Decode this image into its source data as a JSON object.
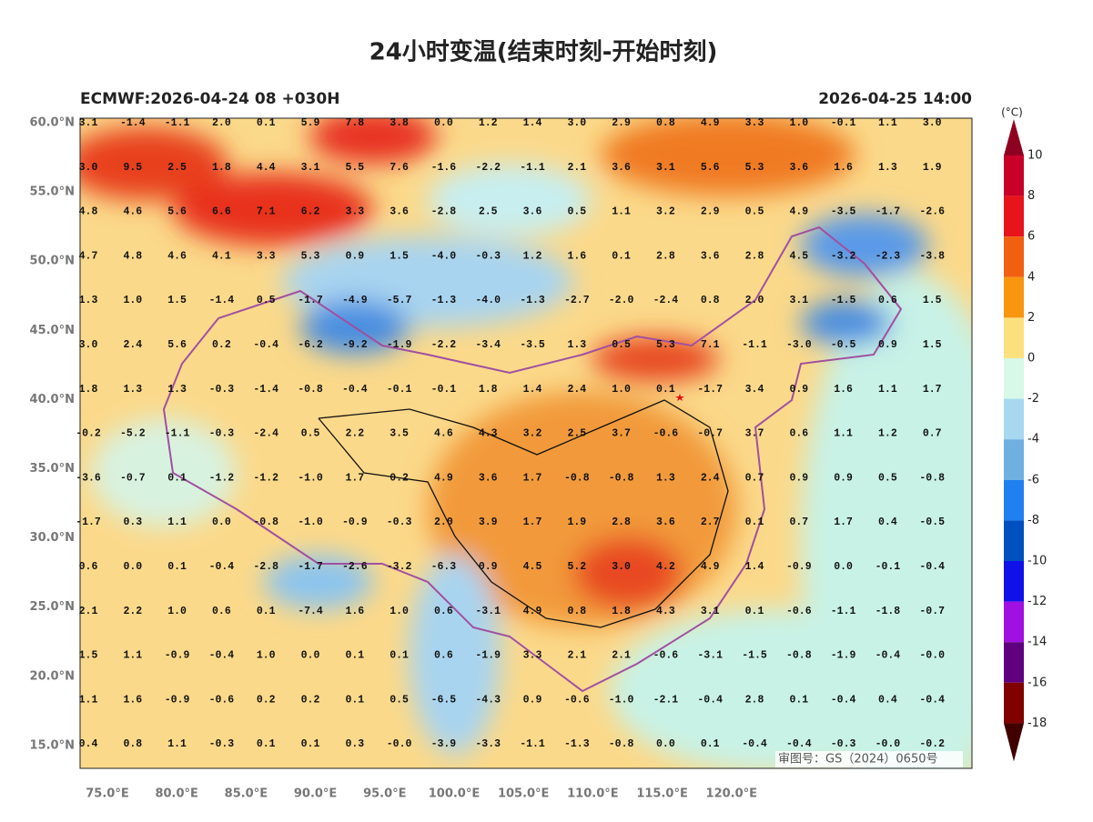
{
  "title": "24小时变温(结束时刻-开始时刻)",
  "header": {
    "left": "ECMWF:2026-04-24 08 +030H",
    "right": "2026-04-25 14:00"
  },
  "map": {
    "lat_labels": [
      "60.0°N",
      "55.0°N",
      "50.0°N",
      "45.0°N",
      "40.0°N",
      "35.0°N",
      "30.0°N",
      "25.0°N",
      "20.0°N",
      "15.0°N"
    ],
    "lon_labels": [
      "75.0°E",
      "80.0°E",
      "85.0°E",
      "90.0°E",
      "95.0°E",
      "100.0°E",
      "105.0°E",
      "110.0°E",
      "115.0°E",
      "120.0°E"
    ],
    "approval": "审图号：GS（2024）0650号",
    "station_rows": [
      [
        "3.1",
        "-1.4",
        "-1.1",
        "2.0",
        "0.1",
        "5.9",
        "7.8",
        "3.8",
        "0.0",
        "1.2",
        "1.4",
        "3.0",
        "2.9",
        "0.8",
        "4.9",
        "3.3",
        "1.0",
        "-0.1",
        "1.1",
        "3.0"
      ],
      [
        "3.0",
        "9.5",
        "2.5",
        "1.8",
        "4.4",
        "3.1",
        "5.5",
        "7.6",
        "-1.6",
        "-2.2",
        "-1.1",
        "2.1",
        "3.6",
        "3.1",
        "5.6",
        "5.3",
        "3.6",
        "1.6",
        "1.3",
        "1.9"
      ],
      [
        "4.8",
        "4.6",
        "5.6",
        "6.6",
        "7.1",
        "6.2",
        "3.3",
        "3.6",
        "-2.8",
        "2.5",
        "3.6",
        "0.5",
        "1.1",
        "3.2",
        "2.9",
        "0.5",
        "4.9",
        "-3.5",
        "-1.7",
        "-2.6"
      ],
      [
        "4.7",
        "4.8",
        "4.6",
        "4.1",
        "3.3",
        "5.3",
        "0.9",
        "1.5",
        "-4.0",
        "-0.3",
        "1.2",
        "1.6",
        "0.1",
        "2.8",
        "3.6",
        "2.8",
        "4.5",
        "-3.2",
        "-2.3",
        "-3.8"
      ],
      [
        "1.3",
        "1.0",
        "1.5",
        "-1.4",
        "0.5",
        "-1.7",
        "-4.9",
        "-5.7",
        "-1.3",
        "-4.0",
        "-1.3",
        "-2.7",
        "-2.0",
        "-2.4",
        "0.8",
        "2.0",
        "3.1",
        "-1.5",
        "0.6",
        "1.5"
      ],
      [
        "3.0",
        "2.4",
        "5.6",
        "0.2",
        "-0.4",
        "-6.2",
        "-9.2",
        "-1.9",
        "-2.2",
        "-3.4",
        "-3.5",
        "1.3",
        "0.5",
        "5.3",
        "7.1",
        "-1.1",
        "-3.0",
        "-0.5",
        "0.9",
        "1.5"
      ],
      [
        "1.8",
        "1.3",
        "1.3",
        "-0.3",
        "-1.4",
        "-0.8",
        "-0.4",
        "-0.1",
        "-0.1",
        "1.8",
        "1.4",
        "2.4",
        "1.0",
        "0.1",
        "-1.7",
        "3.4",
        "0.9",
        "1.6",
        "1.1",
        "1.7"
      ],
      [
        "-0.2",
        "-5.2",
        "-1.1",
        "-0.3",
        "-2.4",
        "0.5",
        "2.2",
        "3.5",
        "4.6",
        "4.3",
        "3.2",
        "2.5",
        "3.7",
        "-0.6",
        "-0.7",
        "3.7",
        "0.6",
        "1.1",
        "1.2",
        "0.7"
      ],
      [
        "-3.6",
        "-0.7",
        "0.1",
        "-1.2",
        "-1.2",
        "-1.0",
        "1.7",
        "0.2",
        "4.9",
        "3.6",
        "1.7",
        "-0.8",
        "-0.8",
        "1.3",
        "2.4",
        "0.7",
        "0.9",
        "0.9",
        "0.5",
        "-0.8"
      ],
      [
        "-1.7",
        "0.3",
        "1.1",
        "0.0",
        "-0.8",
        "-1.0",
        "-0.9",
        "-0.3",
        "2.0",
        "3.9",
        "1.7",
        "1.9",
        "2.8",
        "3.6",
        "2.7",
        "0.1",
        "0.7",
        "1.7",
        "0.4",
        "-0.5"
      ],
      [
        "0.6",
        "0.0",
        "0.1",
        "-0.4",
        "-2.8",
        "-1.7",
        "-2.6",
        "-3.2",
        "-6.3",
        "0.9",
        "4.5",
        "5.2",
        "3.0",
        "4.2",
        "4.9",
        "1.4",
        "-0.9",
        "0.0",
        "-0.1",
        "-0.4"
      ],
      [
        "2.1",
        "2.2",
        "1.0",
        "0.6",
        "0.1",
        "-7.4",
        "1.6",
        "1.0",
        "0.6",
        "-3.1",
        "4.9",
        "0.8",
        "1.8",
        "4.3",
        "3.1",
        "0.1",
        "-0.6",
        "-1.1",
        "-1.8",
        "-0.7"
      ],
      [
        "1.5",
        "1.1",
        "-0.9",
        "-0.4",
        "1.0",
        "0.0",
        "0.1",
        "0.1",
        "0.6",
        "-1.9",
        "3.3",
        "2.1",
        "2.1",
        "-0.6",
        "-3.1",
        "-1.5",
        "-0.8",
        "-1.9",
        "-0.4",
        "-0.0"
      ],
      [
        "1.1",
        "1.6",
        "-0.9",
        "-0.6",
        "0.2",
        "0.2",
        "0.1",
        "0.5",
        "-6.5",
        "-4.3",
        "0.9",
        "-0.6",
        "-1.0",
        "-2.1",
        "-0.4",
        "2.8",
        "0.1",
        "-0.4",
        "0.4",
        "-0.4"
      ],
      [
        "0.4",
        "0.8",
        "1.1",
        "-0.3",
        "0.1",
        "0.1",
        "0.3",
        "-0.0",
        "-3.9",
        "-3.3",
        "-1.1",
        "-1.3",
        "-0.8",
        "0.0",
        "0.1",
        "-0.4",
        "-0.4",
        "-0.3",
        "-0.0",
        "-0.2"
      ]
    ]
  },
  "colorbar": {
    "unit": "(°C)",
    "labels": [
      10,
      8,
      6,
      4,
      2,
      0,
      -2,
      -4,
      -6,
      -8,
      -10,
      -12,
      -14,
      -16,
      -18
    ],
    "colors": [
      "#900020",
      "#c8002a",
      "#e8141c",
      "#f06010",
      "#f8960f",
      "#fde07e",
      "#d8f8e8",
      "#a8d8f0",
      "#70b0e0",
      "#2080f0",
      "#0050c0",
      "#1010e8",
      "#a010e0",
      "#600080",
      "#800000",
      "#400000"
    ]
  }
}
